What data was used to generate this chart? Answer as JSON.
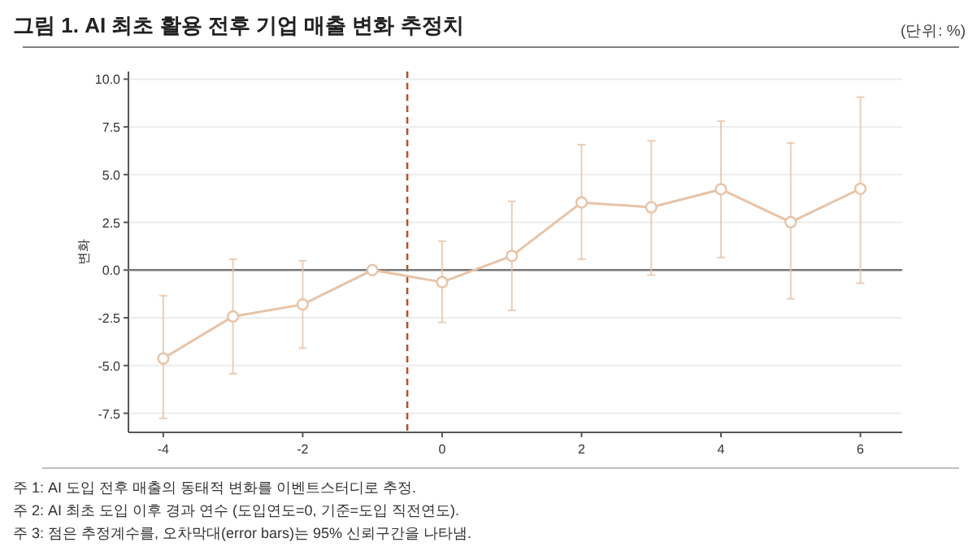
{
  "chart_data": {
    "type": "line",
    "title": "그림 1. AI 최초 활용 전후 기업 매출 변화 추정치",
    "subtitle": "(단위: %)",
    "ylabel": "변화",
    "x": [
      -4,
      -3,
      -2,
      -1,
      0,
      1,
      2,
      3,
      4,
      5,
      6
    ],
    "series": [
      {
        "color": "#e8c3a6",
        "values": [
          -4.63,
          -2.43,
          -1.8,
          0.0,
          -0.63,
          0.74,
          3.54,
          3.29,
          4.23,
          2.51,
          4.26
        ],
        "errors": [
          [
            -7.77,
            -1.34
          ],
          [
            -5.43,
            0.57
          ],
          [
            -4.09,
            0.49
          ],
          null,
          [
            -2.74,
            1.51
          ],
          [
            -2.11,
            3.6
          ],
          [
            0.57,
            6.57
          ],
          [
            -0.26,
            6.77
          ],
          [
            0.66,
            7.8
          ],
          [
            -1.51,
            6.66
          ],
          [
            -0.69,
            9.06
          ]
        ]
      }
    ],
    "marker": "circle",
    "line_style": "solid",
    "grid": "y",
    "xlim": [
      -4.5,
      6.6
    ],
    "xticks": [
      -4,
      -2,
      0,
      2,
      4,
      6
    ],
    "ylim": [
      -8.5,
      10.4
    ],
    "yticks": [
      {
        "value": -7.5,
        "label": "-7.5"
      },
      {
        "value": -5,
        "label": "-5.0"
      },
      {
        "value": -2.5,
        "label": "-2.5"
      },
      {
        "value": 0,
        "label": "0.0"
      },
      {
        "value": 2.5,
        "label": "2.5"
      },
      {
        "value": 5,
        "label": "5.0"
      },
      {
        "value": 7.5,
        "label": "7.5"
      },
      {
        "value": 10,
        "label": "10.0"
      }
    ],
    "ref_lines": [
      {
        "axis": "x",
        "value": -0.5,
        "color": "#b5532a",
        "line_style": "dashed"
      },
      {
        "axis": "y",
        "value": 0,
        "color": "#777777",
        "line_style": "solid"
      }
    ],
    "annotations": [
      "주 1: AI 도입 전후 매출의 동태적 변화를 이벤트스터디로 추정.",
      "주 2: AI 최초 도입 이후 경과 연수 (도입연도=0, 기준=도입 직전연도).",
      "주 3: 점은 추정계수를, 오차막대(error bars)는 95% 신뢰구간을 나타냄."
    ]
  }
}
